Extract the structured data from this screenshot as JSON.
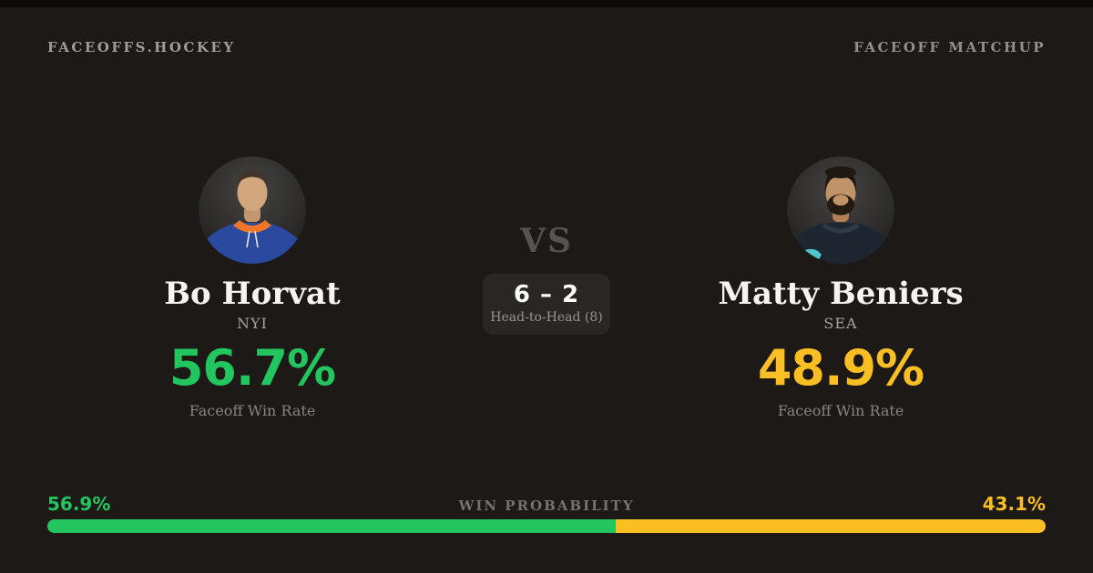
{
  "header": {
    "brand": "FACEOFFS.HOCKEY",
    "label": "FACEOFF MATCHUP"
  },
  "matchup": {
    "vs": "VS",
    "head_to_head": {
      "score": "6 – 2",
      "label": "Head-to-Head (8)"
    },
    "players": [
      {
        "name": "Bo Horvat",
        "team": "NYI",
        "win_rate": "56.7%",
        "stat_label": "Faceoff Win Rate",
        "accent": "#22c55e"
      },
      {
        "name": "Matty Beniers",
        "team": "SEA",
        "win_rate": "48.9%",
        "stat_label": "Faceoff Win Rate",
        "accent": "#fbbf24"
      }
    ]
  },
  "win_probability": {
    "label": "WIN PROBABILITY",
    "left": {
      "value": "56.9%",
      "percent": 56.9,
      "color": "#22c55e"
    },
    "right": {
      "value": "43.1%",
      "percent": 43.1,
      "color": "#fbbf24"
    }
  },
  "colors": {
    "background": "#1c1917",
    "top_strip": "#0c0a09",
    "panel": "#2a2625",
    "green": "#22c55e",
    "yellow": "#fbbf24"
  }
}
